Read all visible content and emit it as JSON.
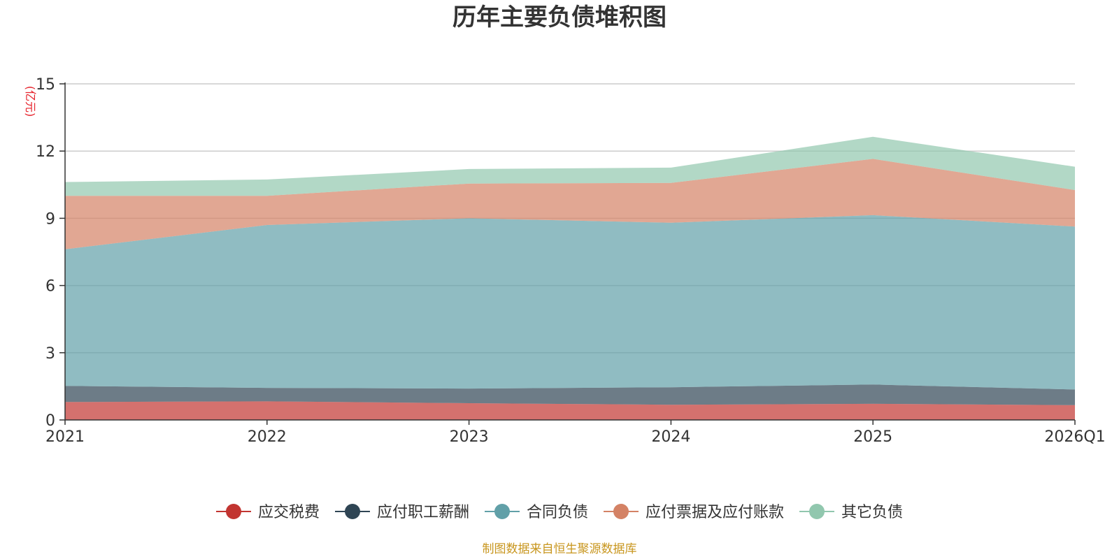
{
  "chart_data": {
    "type": "area",
    "stacked": true,
    "title": "历年主要负债堆积图",
    "ylabel": "(亿元)",
    "xlabel": "",
    "categories": [
      "2021",
      "2022",
      "2023",
      "2024",
      "2025",
      "2026Q1"
    ],
    "ylim": [
      0,
      15
    ],
    "yticks": [
      0,
      3,
      6,
      9,
      12,
      15
    ],
    "grid": true,
    "legend_position": "bottom",
    "series": [
      {
        "name": "应交税费",
        "values": [
          0.8,
          0.83,
          0.75,
          0.68,
          0.72,
          0.66
        ],
        "color": "#c23531"
      },
      {
        "name": "应付职工薪酬",
        "values": [
          0.72,
          0.6,
          0.65,
          0.78,
          0.86,
          0.7
        ],
        "color": "#2f4554"
      },
      {
        "name": "合同负债",
        "values": [
          6.1,
          7.27,
          7.6,
          7.34,
          7.56,
          7.27
        ],
        "color": "#61a0a8"
      },
      {
        "name": "应付票据及应付账款",
        "values": [
          2.38,
          1.3,
          1.55,
          1.78,
          2.51,
          1.63
        ],
        "color": "#d48265"
      },
      {
        "name": "其它负债",
        "values": [
          0.62,
          0.73,
          0.65,
          0.68,
          0.99,
          1.04
        ],
        "color": "#91c7ae"
      }
    ],
    "source_note": "制图数据来自恒生聚源数据库",
    "unit_color": "#e6212a",
    "source_color": "#c8961e"
  }
}
